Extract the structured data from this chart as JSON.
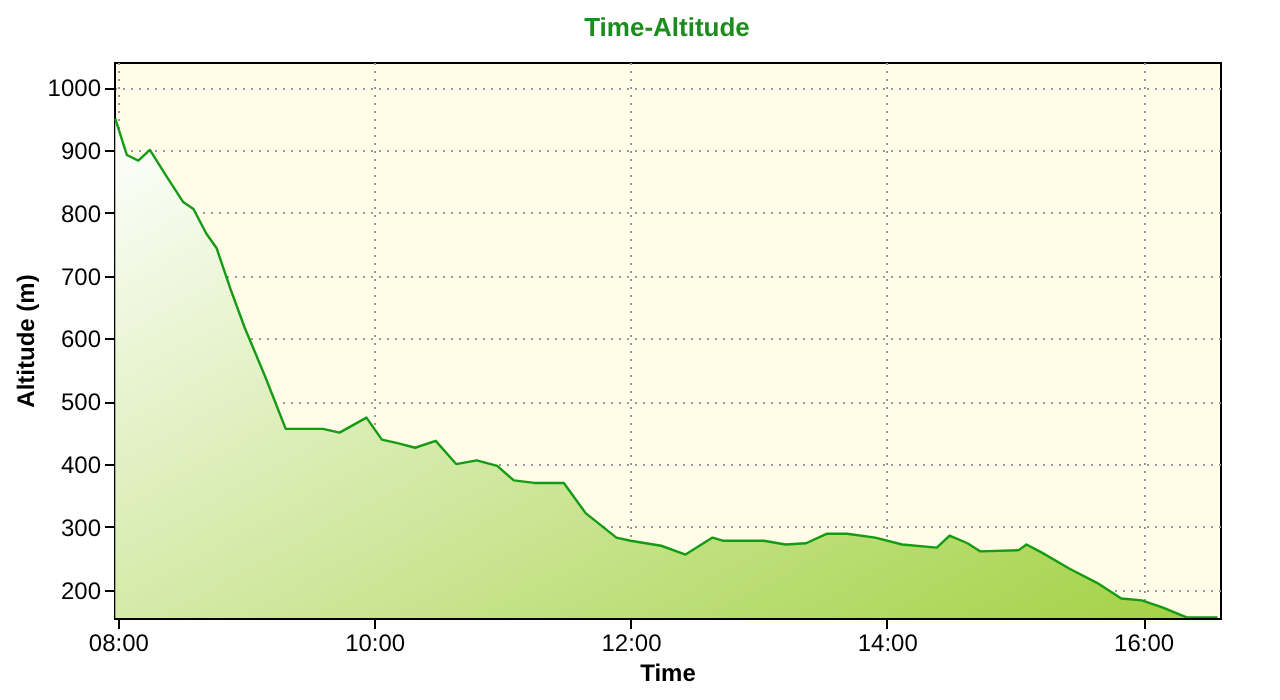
{
  "chart_data": {
    "type": "area",
    "title": "Time-Altitude",
    "xlabel": "Time",
    "ylabel": "Altitude (m)",
    "x": [
      7.98,
      8.07,
      8.16,
      8.25,
      8.37,
      8.51,
      8.59,
      8.69,
      8.77,
      8.88,
      8.99,
      9.15,
      9.31,
      9.6,
      9.73,
      9.94,
      10.06,
      10.19,
      10.32,
      10.48,
      10.64,
      10.8,
      10.96,
      11.09,
      11.25,
      11.48,
      11.65,
      11.89,
      12.0,
      12.24,
      12.43,
      12.64,
      12.72,
      13.04,
      13.21,
      13.37,
      13.53,
      13.69,
      13.91,
      14.12,
      14.39,
      14.49,
      14.63,
      14.73,
      15.03,
      15.09,
      15.21,
      15.43,
      15.64,
      15.83,
      15.99,
      16.15,
      16.34,
      16.58
    ],
    "series": [
      {
        "color": "#139b13",
        "values": [
          950,
          892,
          883,
          900,
          861,
          817,
          806,
          767,
          744,
          678,
          617,
          539,
          456,
          456,
          450,
          474,
          439,
          433,
          426,
          437,
          400,
          406,
          397,
          374,
          370,
          370,
          322,
          283,
          278,
          270,
          256,
          283,
          278,
          278,
          272,
          274,
          289,
          289,
          283,
          272,
          267,
          286,
          274,
          261,
          263,
          272,
          259,
          233,
          211,
          186,
          183,
          172,
          156,
          156
        ]
      }
    ],
    "xlim": [
      7.97,
      16.6
    ],
    "ylim": [
      155,
      1040
    ],
    "xticks": [
      {
        "value": 8,
        "label": "08:00"
      },
      {
        "value": 10,
        "label": "10:00"
      },
      {
        "value": 12,
        "label": "12:00"
      },
      {
        "value": 14,
        "label": "14:00"
      },
      {
        "value": 16,
        "label": "16:00"
      }
    ],
    "yticks": [
      200,
      300,
      400,
      500,
      600,
      700,
      800,
      900,
      1000
    ],
    "grid": true
  }
}
